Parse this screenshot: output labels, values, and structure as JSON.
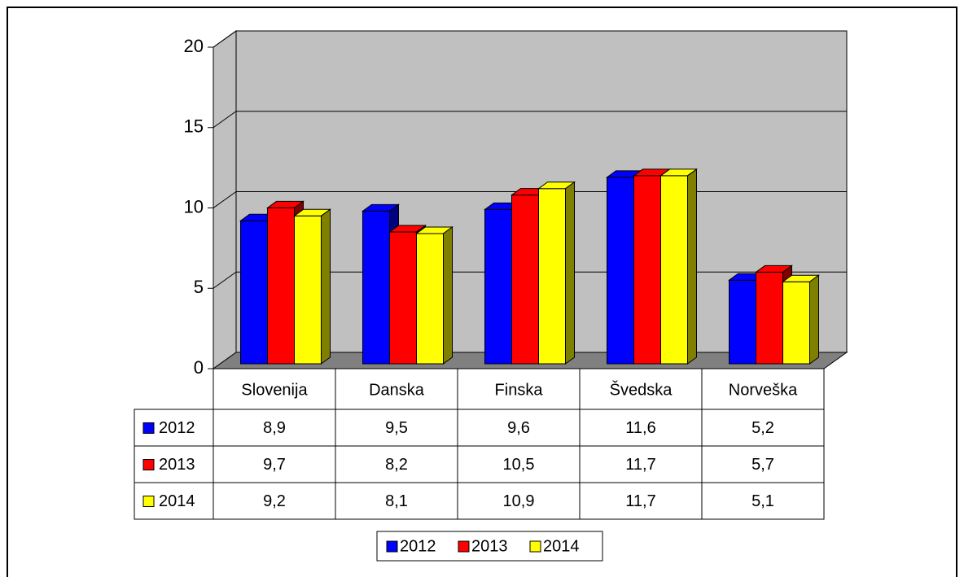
{
  "chart_data": {
    "type": "bar",
    "categories": [
      "Slovenija",
      "Danska",
      "Finska",
      "Švedska",
      "Norveška"
    ],
    "series": [
      {
        "name": "2012",
        "color": "#0000ff",
        "side": "#000080",
        "values": [
          8.9,
          9.5,
          9.6,
          11.6,
          5.2
        ],
        "value_labels": [
          "8,9",
          "9,5",
          "9,6",
          "11,6",
          "5,2"
        ]
      },
      {
        "name": "2013",
        "color": "#ff0000",
        "side": "#800000",
        "values": [
          9.7,
          8.2,
          10.5,
          11.7,
          5.7
        ],
        "value_labels": [
          "9,7",
          "8,2",
          "10,5",
          "11,7",
          "5,7"
        ]
      },
      {
        "name": "2014",
        "color": "#ffff00",
        "side": "#808000",
        "values": [
          9.2,
          8.1,
          10.9,
          11.7,
          5.1
        ],
        "value_labels": [
          "9,2",
          "8,1",
          "10,9",
          "11,7",
          "5,1"
        ]
      }
    ],
    "ylim": [
      0,
      20
    ],
    "yticks": [
      0,
      5,
      10,
      15,
      20
    ],
    "grid": true
  }
}
